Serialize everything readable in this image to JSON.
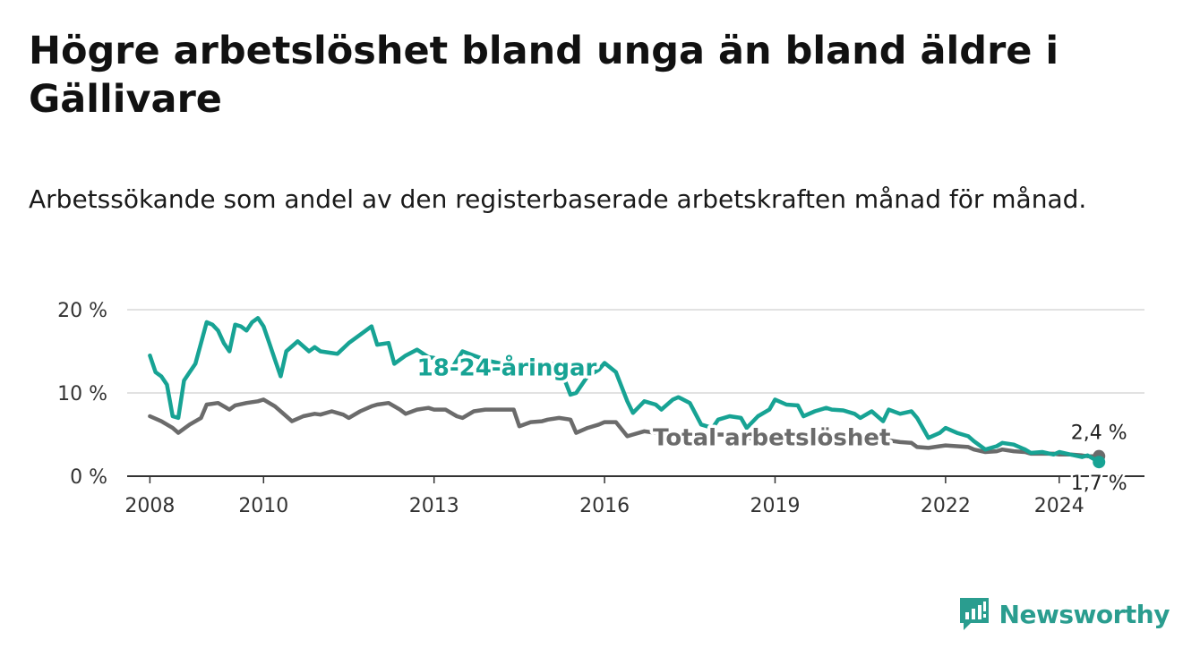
{
  "header": {
    "title": "Högre arbetslöshet bland unga än bland äldre i Gällivare",
    "subtitle": "Arbetssökande som andel av den registerbaserade arbetskraften månad för månad."
  },
  "brand": {
    "name": "Newsworthy",
    "icon": "newsworthy-logo-icon",
    "color": "#2a9d8f"
  },
  "colors": {
    "youth": "#17a394",
    "total": "#6b6b6b",
    "grid": "#d9d9d9",
    "axis": "#333333"
  },
  "chart_data": {
    "type": "line",
    "xlabel": "",
    "ylabel": "",
    "ylim": [
      0,
      20
    ],
    "yticks": [
      0,
      10,
      20
    ],
    "ytick_labels": [
      "0 %",
      "10 %",
      "20 %"
    ],
    "xlim": [
      2007.6,
      2025.5
    ],
    "xticks": [
      2008,
      2010,
      2013,
      2016,
      2019,
      2022,
      2024
    ],
    "xtick_labels": [
      "2008",
      "2010",
      "2013",
      "2016",
      "2019",
      "2022",
      "2024"
    ],
    "grid": true,
    "legend": "inline labels",
    "series": [
      {
        "name": "18-24-åringar",
        "color": "#17a394",
        "x": [
          2008.0,
          2008.1,
          2008.2,
          2008.3,
          2008.4,
          2008.5,
          2008.6,
          2008.7,
          2008.8,
          2008.9,
          2009.0,
          2009.1,
          2009.2,
          2009.3,
          2009.4,
          2009.5,
          2009.6,
          2009.7,
          2009.8,
          2009.9,
          2010.0,
          2010.1,
          2010.2,
          2010.3,
          2010.4,
          2010.6,
          2010.8,
          2010.9,
          2011.0,
          2011.2,
          2011.3,
          2011.5,
          2011.7,
          2011.9,
          2012.0,
          2012.2,
          2012.3,
          2012.5,
          2012.7,
          2012.9,
          2013.0,
          2013.2,
          2013.3,
          2013.5,
          2013.7,
          2013.9,
          2014.0,
          2014.2,
          2014.3,
          2014.5,
          2014.7,
          2014.9,
          2015.0,
          2015.2,
          2015.4,
          2015.5,
          2015.7,
          2015.9,
          2016.0,
          2016.2,
          2016.4,
          2016.5,
          2016.7,
          2016.9,
          2017.0,
          2017.2,
          2017.3,
          2017.5,
          2017.7,
          2017.9,
          2018.0,
          2018.2,
          2018.4,
          2018.5,
          2018.7,
          2018.9,
          2019.0,
          2019.2,
          2019.4,
          2019.5,
          2019.7,
          2019.9,
          2020.0,
          2020.2,
          2020.4,
          2020.5,
          2020.7,
          2020.9,
          2021.0,
          2021.2,
          2021.4,
          2021.5,
          2021.7,
          2021.9,
          2022.0,
          2022.2,
          2022.4,
          2022.5,
          2022.7,
          2022.9,
          2023.0,
          2023.2,
          2023.4,
          2023.5,
          2023.7,
          2023.9,
          2024.0,
          2024.2,
          2024.4,
          2024.5,
          2024.7
        ],
        "y": [
          14.5,
          12.5,
          12.0,
          11.0,
          7.2,
          7.0,
          11.5,
          12.5,
          13.5,
          16.0,
          18.5,
          18.2,
          17.5,
          16.0,
          15.0,
          18.2,
          18.0,
          17.5,
          18.5,
          19.0,
          18.0,
          16.0,
          14.0,
          12.0,
          15.0,
          16.2,
          15.0,
          15.5,
          15.0,
          14.8,
          14.7,
          16.0,
          17.0,
          18.0,
          15.8,
          16.0,
          13.5,
          14.5,
          15.2,
          14.3,
          14.2,
          13.8,
          12.8,
          15.0,
          14.5,
          14.0,
          13.8,
          13.5,
          13.0,
          12.5,
          13.5,
          12.8,
          13.6,
          13.3,
          9.8,
          10.0,
          12.0,
          12.8,
          13.6,
          12.5,
          9.0,
          7.6,
          9.0,
          8.6,
          8.0,
          9.2,
          9.5,
          8.8,
          6.2,
          5.8,
          6.8,
          7.2,
          7.0,
          5.8,
          7.2,
          8.0,
          9.2,
          8.6,
          8.5,
          7.2,
          7.8,
          8.2,
          8.0,
          7.9,
          7.5,
          7.0,
          7.8,
          6.6,
          8.0,
          7.5,
          7.8,
          7.0,
          4.6,
          5.2,
          5.8,
          5.2,
          4.8,
          4.2,
          3.2,
          3.6,
          4.0,
          3.8,
          3.2,
          2.8,
          2.9,
          2.6,
          2.9,
          2.6,
          2.3,
          2.5,
          1.7
        ]
      },
      {
        "name": "Total arbetslöshet",
        "color": "#6b6b6b",
        "x": [
          2008.0,
          2008.2,
          2008.4,
          2008.5,
          2008.7,
          2008.9,
          2009.0,
          2009.2,
          2009.4,
          2009.5,
          2009.7,
          2009.9,
          2010.0,
          2010.2,
          2010.4,
          2010.5,
          2010.7,
          2010.9,
          2011.0,
          2011.2,
          2011.4,
          2011.5,
          2011.7,
          2011.9,
          2012.0,
          2012.2,
          2012.4,
          2012.5,
          2012.7,
          2012.9,
          2013.0,
          2013.2,
          2013.4,
          2013.5,
          2013.7,
          2013.9,
          2014.0,
          2014.2,
          2014.4,
          2014.5,
          2014.7,
          2014.9,
          2015.0,
          2015.2,
          2015.4,
          2015.5,
          2015.7,
          2015.9,
          2016.0,
          2016.2,
          2016.4,
          2016.5,
          2016.7,
          2016.9,
          2017.0,
          2017.2,
          2017.4,
          2017.5,
          2017.7,
          2017.9,
          2018.0,
          2018.2,
          2018.4,
          2018.5,
          2018.7,
          2018.9,
          2019.0,
          2019.2,
          2019.4,
          2019.5,
          2019.7,
          2019.9,
          2020.0,
          2020.2,
          2020.4,
          2020.5,
          2020.7,
          2020.9,
          2021.0,
          2021.2,
          2021.4,
          2021.5,
          2021.7,
          2021.9,
          2022.0,
          2022.2,
          2022.4,
          2022.5,
          2022.7,
          2022.9,
          2023.0,
          2023.2,
          2023.4,
          2023.5,
          2023.7,
          2023.9,
          2024.0,
          2024.2,
          2024.4,
          2024.5,
          2024.7
        ],
        "y": [
          7.2,
          6.6,
          5.8,
          5.2,
          6.2,
          7.0,
          8.6,
          8.8,
          8.0,
          8.5,
          8.8,
          9.0,
          9.2,
          8.4,
          7.2,
          6.6,
          7.2,
          7.5,
          7.4,
          7.8,
          7.4,
          7.0,
          7.8,
          8.4,
          8.6,
          8.8,
          8.0,
          7.5,
          8.0,
          8.2,
          8.0,
          8.0,
          7.2,
          7.0,
          7.8,
          8.0,
          8.0,
          8.0,
          8.0,
          6.0,
          6.5,
          6.6,
          6.8,
          7.0,
          6.8,
          5.2,
          5.8,
          6.2,
          6.5,
          6.5,
          4.8,
          5.0,
          5.4,
          5.2,
          5.0,
          5.0,
          5.2,
          5.1,
          4.8,
          4.9,
          5.0,
          5.0,
          4.9,
          4.5,
          4.7,
          4.8,
          5.0,
          5.1,
          5.0,
          4.8,
          4.9,
          4.9,
          4.9,
          4.8,
          4.8,
          4.6,
          4.6,
          4.5,
          4.3,
          4.1,
          4.0,
          3.5,
          3.4,
          3.6,
          3.7,
          3.6,
          3.5,
          3.2,
          2.9,
          3.0,
          3.2,
          3.0,
          2.9,
          2.7,
          2.7,
          2.7,
          2.6,
          2.6,
          2.5,
          2.4,
          2.4
        ]
      }
    ],
    "annotations": [
      {
        "text": "18-24-åringar",
        "series": "18-24-åringar"
      },
      {
        "text": "Total arbetslöshet",
        "series": "Total arbetslöshet"
      },
      {
        "text": "2,4 %",
        "series": "Total arbetslöshet",
        "value": 2.4
      },
      {
        "text": "1,7 %",
        "series": "18-24-åringar",
        "value": 1.7
      }
    ]
  }
}
